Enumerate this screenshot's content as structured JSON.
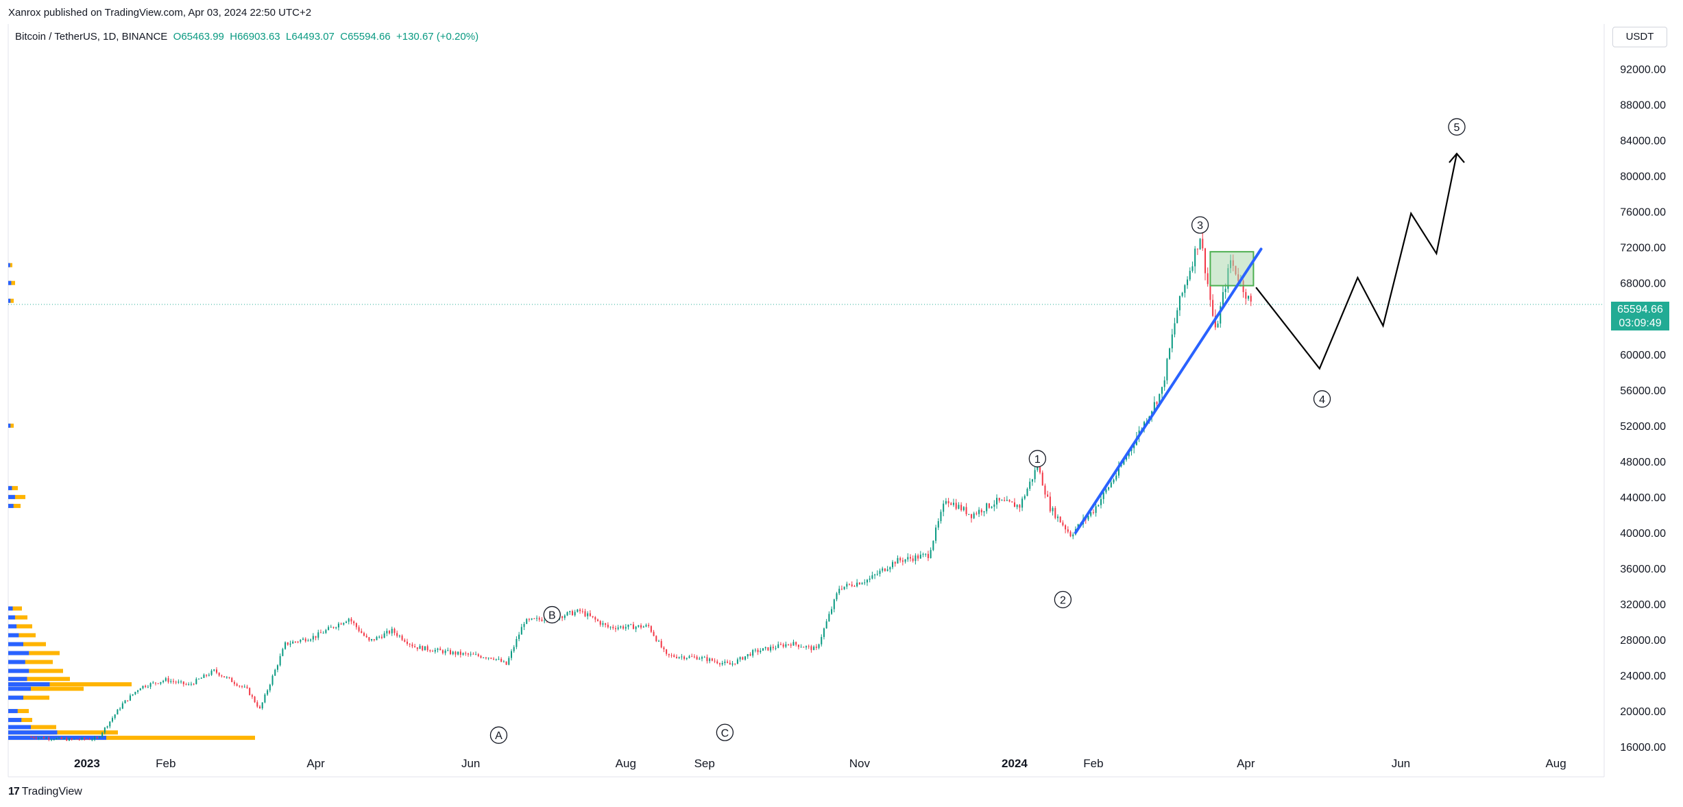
{
  "header": {
    "publisher": "Xanrox published on TradingView.com, Apr 03, 2024 22:50 UTC+2",
    "symbol": "Bitcoin / TetherUS, 1D, BINANCE",
    "open": "O65463.99",
    "high": "H66903.63",
    "low": "L64493.07",
    "close": "C65594.66",
    "change": "+130.67 (+0.20%)",
    "currency_button": "USDT"
  },
  "price_tag": {
    "price": "65594.66",
    "countdown": "03:09:49"
  },
  "footer": {
    "brand": "TradingView",
    "logo_mark": "17"
  },
  "colors": {
    "up": "#089981",
    "down": "#f23645",
    "trendline": "#2962ff",
    "box_border": "#4caf50",
    "box_fill": "#a5d6a7",
    "volume_up": "#2962ff",
    "volume_down": "#ffb400",
    "price_line": "#22ab94"
  },
  "chart_data": {
    "type": "candlestick",
    "x_ticks": [
      "2023",
      "Feb",
      "Apr",
      "Jun",
      "Aug",
      "Sep",
      "Nov",
      "2024",
      "Feb",
      "Apr",
      "Jun",
      "Aug"
    ],
    "y_ticks": [
      "16000.00",
      "20000.00",
      "24000.00",
      "28000.00",
      "32000.00",
      "36000.00",
      "40000.00",
      "44000.00",
      "48000.00",
      "52000.00",
      "56000.00",
      "60000.00",
      "64000.00",
      "68000.00",
      "72000.00",
      "76000.00",
      "80000.00",
      "84000.00",
      "88000.00",
      "92000.00"
    ],
    "ylim": [
      15700,
      95500
    ],
    "xlim": [
      "2022-12-01",
      "2024-08-20"
    ],
    "current_price": 65594.66,
    "price_path": [
      [
        "2022-12-10",
        17100
      ],
      [
        "2022-12-25",
        16800
      ],
      [
        "2023-01-05",
        16900
      ],
      [
        "2023-01-15",
        20800
      ],
      [
        "2023-01-22",
        22700
      ],
      [
        "2023-02-01",
        23500
      ],
      [
        "2023-02-10",
        22900
      ],
      [
        "2023-02-20",
        24500
      ],
      [
        "2023-03-05",
        22400
      ],
      [
        "2023-03-10",
        20200
      ],
      [
        "2023-03-20",
        27500
      ],
      [
        "2023-04-01",
        28400
      ],
      [
        "2023-04-14",
        30400
      ],
      [
        "2023-04-22",
        27800
      ],
      [
        "2023-05-01",
        29000
      ],
      [
        "2023-05-10",
        27200
      ],
      [
        "2023-05-25",
        26500
      ],
      [
        "2023-06-10",
        26000
      ],
      [
        "2023-06-15",
        25200
      ],
      [
        "2023-06-22",
        30000
      ],
      [
        "2023-07-05",
        30600
      ],
      [
        "2023-07-14",
        31200
      ],
      [
        "2023-07-25",
        29400
      ],
      [
        "2023-08-10",
        29500
      ],
      [
        "2023-08-17",
        26200
      ],
      [
        "2023-08-30",
        26000
      ],
      [
        "2023-09-11",
        25200
      ],
      [
        "2023-09-20",
        26600
      ],
      [
        "2023-10-05",
        27600
      ],
      [
        "2023-10-15",
        26900
      ],
      [
        "2023-10-24",
        33800
      ],
      [
        "2023-11-05",
        34800
      ],
      [
        "2023-11-15",
        36800
      ],
      [
        "2023-11-28",
        37500
      ],
      [
        "2023-12-05",
        43800
      ],
      [
        "2023-12-15",
        42000
      ],
      [
        "2023-12-25",
        43500
      ],
      [
        "2024-01-03",
        43000
      ],
      [
        "2024-01-10",
        47500
      ],
      [
        "2024-01-15",
        42800
      ],
      [
        "2024-01-23",
        39800
      ],
      [
        "2024-02-01",
        42500
      ],
      [
        "2024-02-10",
        46500
      ],
      [
        "2024-02-20",
        51800
      ],
      [
        "2024-02-28",
        56000
      ],
      [
        "2024-03-05",
        65000
      ],
      [
        "2024-03-14",
        73300
      ],
      [
        "2024-03-20",
        62500
      ],
      [
        "2024-03-26",
        70500
      ],
      [
        "2024-04-03",
        65594
      ]
    ],
    "trendline": {
      "from": [
        "2024-01-25",
        40000
      ],
      "to": [
        "2024-04-07",
        71800
      ]
    },
    "box": {
      "from": [
        "2024-03-18",
        71500
      ],
      "to": [
        "2024-04-04",
        67700
      ]
    },
    "projection": [
      [
        "2024-04-05",
        67500
      ],
      [
        "2024-04-30",
        58400
      ],
      [
        "2024-05-15",
        68600
      ],
      [
        "2024-05-25",
        63200
      ],
      [
        "2024-06-05",
        75800
      ],
      [
        "2024-06-15",
        71300
      ],
      [
        "2024-06-23",
        82500
      ]
    ],
    "wave_labels": [
      {
        "label": "A",
        "date": "2023-06-12",
        "price": 17300
      },
      {
        "label": "B",
        "date": "2023-07-03",
        "price": 30800
      },
      {
        "label": "C",
        "date": "2023-09-09",
        "price": 17600
      },
      {
        "label": "1",
        "date": "2024-01-10",
        "price": 48300
      },
      {
        "label": "2",
        "date": "2024-01-20",
        "price": 32500
      },
      {
        "label": "3",
        "date": "2024-03-14",
        "price": 74500
      },
      {
        "label": "4",
        "date": "2024-05-01",
        "price": 55000
      },
      {
        "label": "5",
        "date": "2024-06-23",
        "price": 85500
      }
    ]
  }
}
